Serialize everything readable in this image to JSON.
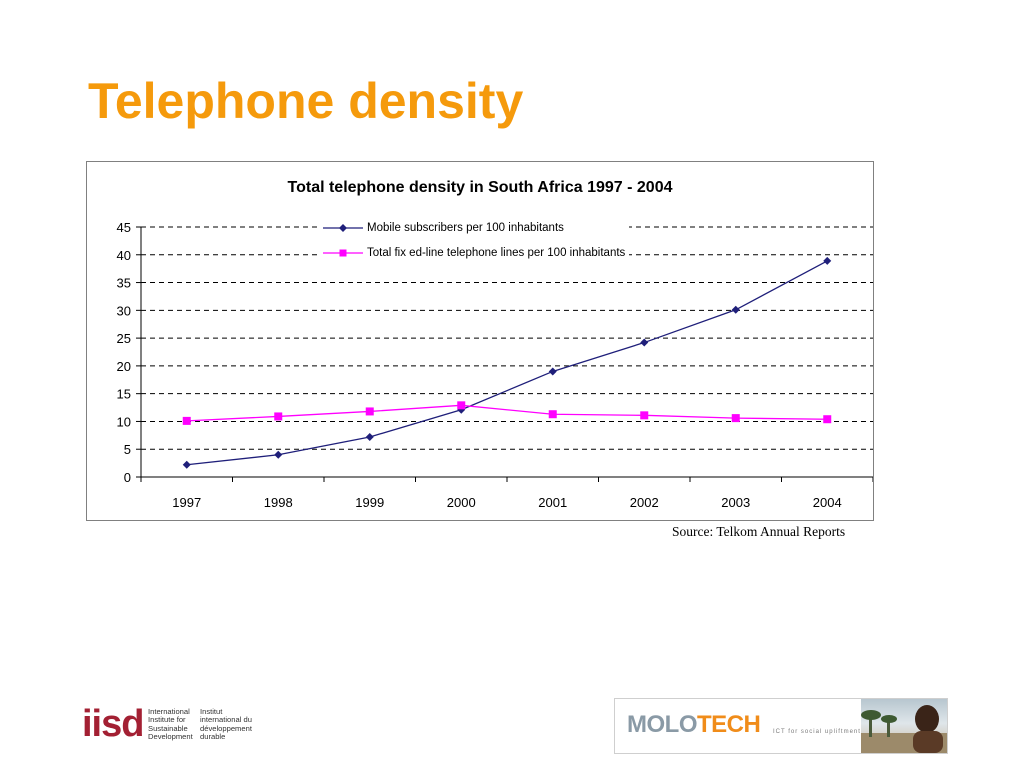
{
  "slide": {
    "title": "Telephone density",
    "source": "Source: Telkom Annual Reports"
  },
  "logos": {
    "iisd": {
      "mark": "iisd",
      "col1": [
        "International",
        "Institute for",
        "Sustainable",
        "Development"
      ],
      "col2": [
        "Institut",
        "international du",
        "développement",
        "durable"
      ]
    },
    "molotech": {
      "name_part1": "MOLO",
      "name_part2": "TECH",
      "tagline": "ICT for social upliftment"
    }
  },
  "chart_data": {
    "type": "line",
    "title": "Total telephone density in South Africa 1997 - 2004",
    "categories": [
      "1997",
      "1998",
      "1999",
      "2000",
      "2001",
      "2002",
      "2003",
      "2004"
    ],
    "series": [
      {
        "name": "Mobile subscribers per 100 inhabitants",
        "color": "#1f1f7a",
        "marker": "diamond",
        "values": [
          2.2,
          4.0,
          7.2,
          12.1,
          19.0,
          24.2,
          30.1,
          38.9
        ]
      },
      {
        "name": "Total fix ed-line telephone lines per 100 inhabitants",
        "color": "#ff00ff",
        "marker": "square",
        "values": [
          10.1,
          10.9,
          11.8,
          12.9,
          11.3,
          11.1,
          10.6,
          10.4
        ]
      }
    ],
    "ylim": [
      0,
      45
    ],
    "yticks": [
      0,
      5,
      10,
      15,
      20,
      25,
      30,
      35,
      40,
      45
    ],
    "grid": "horizontal-dashed",
    "legend_position": "top-left"
  },
  "colors": {
    "title": "#f59a0c",
    "grid": "#000000"
  }
}
